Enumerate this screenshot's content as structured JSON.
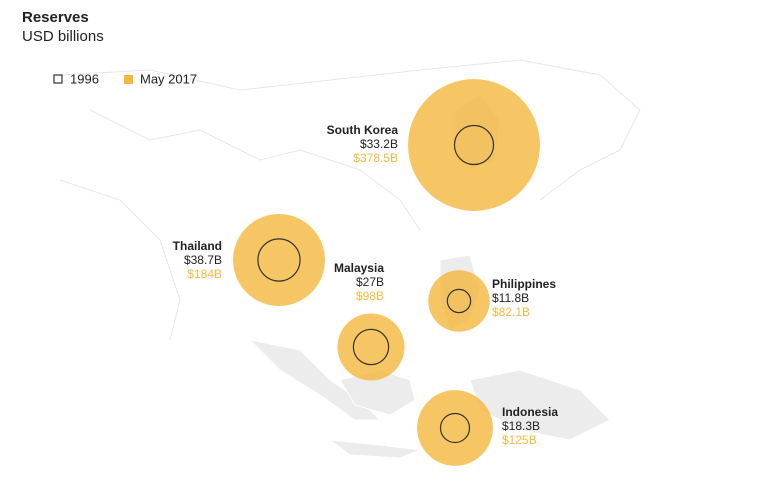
{
  "chart_data": {
    "type": "bubble-map",
    "title": "Reserves",
    "subtitle": "USD billions",
    "categories": [
      "South Korea",
      "Thailand",
      "Malaysia",
      "Philippines",
      "Indonesia"
    ],
    "series": [
      {
        "name": "1996",
        "color": "#333333",
        "values": [
          33.2,
          38.7,
          27,
          11.8,
          18.3
        ],
        "value_labels": [
          "$33.2B",
          "$38.7B",
          "$27B",
          "$11.8B",
          "$18.3B"
        ]
      },
      {
        "name": "May 2017",
        "color": "#f5b83d",
        "values": [
          378.5,
          184,
          98,
          82.1,
          125
        ],
        "value_labels": [
          "$378.5B",
          "$184B",
          "$98B",
          "$82.1B",
          "$125B"
        ]
      }
    ]
  }
}
